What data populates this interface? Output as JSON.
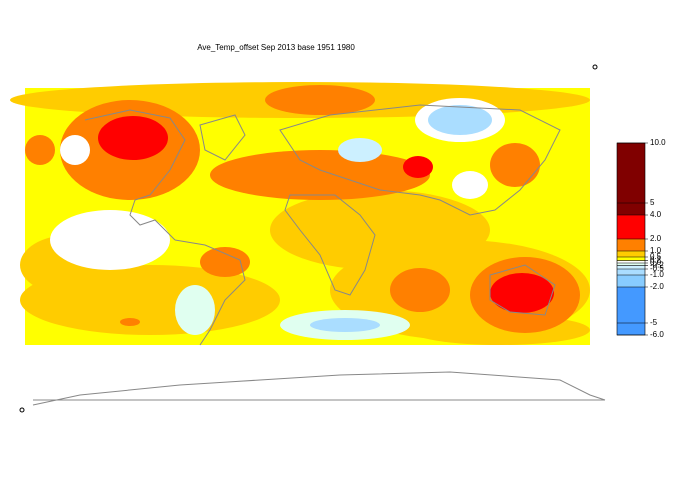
{
  "title": "Ave_Temp_offset Sep 2013  base 1951 1980",
  "colorbar": {
    "bins": [
      -6,
      -2,
      -1,
      -0.5,
      -0.2,
      0,
      0.2,
      0.5,
      1,
      2,
      4,
      10
    ],
    "colors": [
      "#4499ff",
      "#88ccff",
      "#aaddff",
      "#ccf0ff",
      "#e0fff0",
      "#ffffff",
      "#ffff00",
      "#ffcc00",
      "#ff8000",
      "#ff0000",
      "#800000"
    ],
    "ticks": [
      {
        "value": 10,
        "label": "10.0"
      },
      5,
      {
        "value": 4,
        "label": "4.0"
      },
      {
        "value": 2,
        "label": "2.0"
      },
      {
        "value": 1,
        "label": "1.0"
      },
      0.5,
      0.2,
      {
        "value": 0,
        "label": "0.0"
      },
      -0.2,
      -0.5,
      {
        "value": -1,
        "label": "-1.0"
      },
      {
        "value": -2,
        "label": "-2.0"
      },
      -5,
      {
        "value": -6,
        "label": "-6.0"
      }
    ]
  }
}
